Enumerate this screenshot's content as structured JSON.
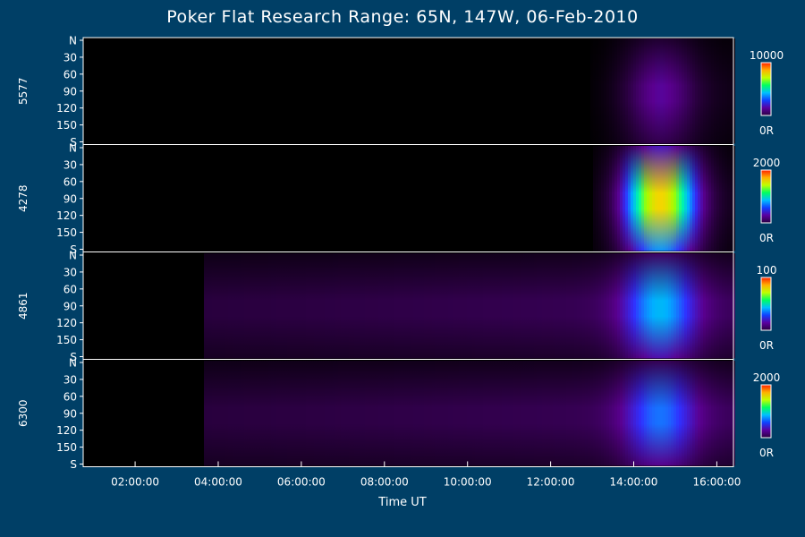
{
  "chart_data": {
    "type": "heatmap",
    "title": "Poker Flat Research Range: 65N, 147W, 06-Feb-2010",
    "xlabel": "Time UT",
    "x_ticks": [
      "02:00:00",
      "04:00:00",
      "06:00:00",
      "08:00:00",
      "10:00:00",
      "12:00:00",
      "14:00:00",
      "16:00:00"
    ],
    "xlim_hours": [
      0.75,
      16.4
    ],
    "y_ticks": [
      "N",
      "30",
      "60",
      "90",
      "120",
      "150",
      "S"
    ],
    "ylim_deg": [
      0,
      180
    ],
    "panels": [
      {
        "label": "5577",
        "colorbar_max": "10000",
        "colorbar_min": "0R",
        "peak_hour": 14.6,
        "peak_intensity": 0.22,
        "onset_hour": 12.8
      },
      {
        "label": "4278",
        "colorbar_max": "2000",
        "colorbar_min": "0R",
        "peak_hour": 14.6,
        "peak_intensity": 0.82,
        "onset_hour": 13.0
      },
      {
        "label": "4861",
        "colorbar_max": "100",
        "colorbar_min": "0R",
        "peak_hour": 14.6,
        "peak_intensity": 0.35,
        "onset_hour": 3.65
      },
      {
        "label": "6300",
        "colorbar_max": "2000",
        "colorbar_min": "0R",
        "peak_hour": 14.6,
        "peak_intensity": 0.28,
        "onset_hour": 3.65
      }
    ],
    "colorbar_colors": [
      "#2a0040",
      "#5a00a0",
      "#1040ff",
      "#00c0ff",
      "#00ff60",
      "#c0ff00",
      "#ffb000",
      "#ff2000"
    ]
  }
}
